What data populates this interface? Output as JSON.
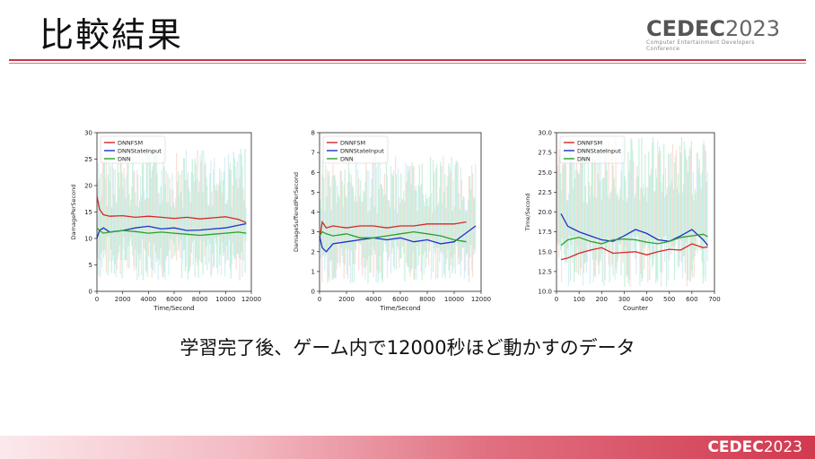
{
  "slide": {
    "title": "比較結果",
    "logo_main": "CEDEC",
    "logo_year": "2023",
    "logo_sub": "Computer Entertainment Developers Conference",
    "caption": "学習完了後、ゲーム内で12000秒ほど動かすのデータ",
    "footer_logo_main": "CEDEC",
    "footer_logo_year": "2023"
  },
  "colors": {
    "accent": "#c0394b",
    "DNNFSM": "#d62728",
    "DNNStateInput": "#1f33c8",
    "DNN": "#2ca02c",
    "noise": "#9fe8c0"
  },
  "chart_data": [
    {
      "type": "line",
      "xlabel": "Time/Second",
      "ylabel": "DamagePerSecond",
      "xlim": [
        0,
        12000
      ],
      "ylim": [
        0,
        30
      ],
      "xticks": [
        "0",
        "2000",
        "4000",
        "6000",
        "8000",
        "10000",
        "12000"
      ],
      "yticks": [
        "0",
        "5",
        "10",
        "15",
        "20",
        "25",
        "30"
      ],
      "legend": "top-left",
      "noise_band": [
        2,
        27
      ],
      "series": [
        {
          "name": "DNNFSM",
          "x": [
            0,
            200,
            500,
            1000,
            2000,
            3000,
            4000,
            5000,
            6000,
            7000,
            8000,
            9000,
            10000,
            11000,
            11600
          ],
          "y": [
            18,
            15.5,
            14.5,
            14.2,
            14.3,
            14.0,
            14.2,
            14.0,
            13.8,
            14.0,
            13.7,
            13.9,
            14.1,
            13.6,
            13.0
          ]
        },
        {
          "name": "DNNStateInput",
          "x": [
            0,
            200,
            500,
            1000,
            2000,
            3000,
            4000,
            5000,
            6000,
            7000,
            8000,
            9000,
            10000,
            11000,
            11600
          ],
          "y": [
            10,
            11.5,
            12.0,
            11.2,
            11.5,
            12.0,
            12.3,
            11.8,
            12.0,
            11.5,
            11.6,
            11.8,
            12.0,
            12.5,
            12.8
          ]
        },
        {
          "name": "DNN",
          "x": [
            0,
            200,
            500,
            1000,
            2000,
            3000,
            4000,
            5000,
            6000,
            7000,
            8000,
            9000,
            10000,
            11000,
            11600
          ],
          "y": [
            12,
            11.5,
            11.0,
            11.2,
            11.5,
            11.3,
            11.0,
            11.2,
            11.0,
            10.8,
            10.6,
            10.8,
            11.0,
            11.2,
            11.0
          ]
        }
      ]
    },
    {
      "type": "line",
      "xlabel": "Time/Second",
      "ylabel": "DamageSufferedPerSecond",
      "xlim": [
        0,
        12000
      ],
      "ylim": [
        0,
        8
      ],
      "xticks": [
        "0",
        "2000",
        "4000",
        "6000",
        "8000",
        "10000",
        "12000"
      ],
      "yticks": [
        "0",
        "1",
        "2",
        "3",
        "4",
        "5",
        "6",
        "7",
        "8"
      ],
      "legend": "top-left",
      "noise_band": [
        0.4,
        6.8
      ],
      "series": [
        {
          "name": "DNNFSM",
          "x": [
            0,
            200,
            500,
            1000,
            2000,
            3000,
            4000,
            5000,
            6000,
            7000,
            8000,
            9000,
            10000,
            10900
          ],
          "y": [
            2.6,
            3.5,
            3.2,
            3.3,
            3.2,
            3.3,
            3.3,
            3.2,
            3.3,
            3.3,
            3.4,
            3.4,
            3.4,
            3.5
          ]
        },
        {
          "name": "DNNStateInput",
          "x": [
            0,
            200,
            500,
            1000,
            2000,
            3000,
            4000,
            5000,
            6000,
            7000,
            8000,
            9000,
            10000,
            11000,
            11600
          ],
          "y": [
            2.8,
            2.2,
            2.0,
            2.4,
            2.5,
            2.6,
            2.7,
            2.6,
            2.7,
            2.5,
            2.6,
            2.4,
            2.5,
            3.0,
            3.3
          ]
        },
        {
          "name": "DNN",
          "x": [
            0,
            200,
            500,
            1000,
            2000,
            3000,
            4000,
            5000,
            6000,
            7000,
            8000,
            9000,
            10000,
            10900
          ],
          "y": [
            2.8,
            3.0,
            2.9,
            2.8,
            2.9,
            2.7,
            2.7,
            2.8,
            2.9,
            3.0,
            2.9,
            2.8,
            2.6,
            2.5
          ]
        }
      ]
    },
    {
      "type": "line",
      "xlabel": "Counter",
      "ylabel": "Time/Second",
      "xlim": [
        0,
        700
      ],
      "ylim": [
        10,
        30
      ],
      "xticks": [
        "0",
        "100",
        "200",
        "300",
        "400",
        "500",
        "600",
        "700"
      ],
      "yticks": [
        "10.0",
        "12.5",
        "15.0",
        "17.5",
        "20.0",
        "22.5",
        "25.0",
        "27.5",
        "30.0"
      ],
      "legend": "top-left",
      "noise_band": [
        10.5,
        29.5
      ],
      "series": [
        {
          "name": "DNNFSM",
          "x": [
            20,
            50,
            100,
            150,
            200,
            250,
            300,
            350,
            400,
            450,
            500,
            550,
            600,
            650,
            670
          ],
          "y": [
            14.0,
            14.2,
            14.8,
            15.2,
            15.5,
            14.8,
            14.9,
            15.0,
            14.6,
            15.0,
            15.3,
            15.2,
            16.0,
            15.5,
            15.6
          ]
        },
        {
          "name": "DNNStateInput",
          "x": [
            20,
            50,
            100,
            150,
            200,
            250,
            300,
            350,
            400,
            450,
            500,
            550,
            600,
            650,
            670
          ],
          "y": [
            19.8,
            18.2,
            17.5,
            17.0,
            16.5,
            16.3,
            17.0,
            17.8,
            17.3,
            16.5,
            16.3,
            17.0,
            17.8,
            16.5,
            15.8
          ]
        },
        {
          "name": "DNN",
          "x": [
            20,
            50,
            100,
            150,
            200,
            250,
            300,
            350,
            400,
            450,
            500,
            550,
            600,
            650,
            670
          ],
          "y": [
            15.8,
            16.5,
            16.8,
            16.3,
            16.0,
            16.5,
            16.6,
            16.5,
            16.2,
            16.0,
            16.3,
            16.8,
            17.0,
            17.2,
            16.9
          ]
        }
      ]
    }
  ]
}
